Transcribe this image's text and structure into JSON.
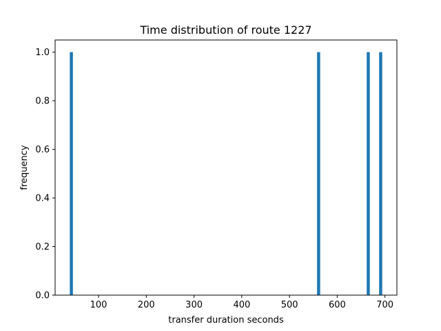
{
  "chart_data": {
    "type": "bar",
    "title": "Time distribution of route 1227",
    "xlabel": "transfer duration seconds",
    "ylabel": "frequency",
    "x": [
      43,
      561,
      665,
      691
    ],
    "values": [
      1.0,
      1.0,
      1.0,
      1.0
    ],
    "xlim": [
      9,
      725
    ],
    "ylim": [
      0,
      1.05
    ],
    "xticks": [
      100,
      200,
      300,
      400,
      500,
      600,
      700
    ],
    "yticks": [
      0.0,
      0.2,
      0.4,
      0.6,
      0.8,
      1.0
    ],
    "ytick_labels": [
      "0.0",
      "0.2",
      "0.4",
      "0.6",
      "0.8",
      "1.0"
    ],
    "grid": false,
    "bar_color": "#1f77b4"
  }
}
